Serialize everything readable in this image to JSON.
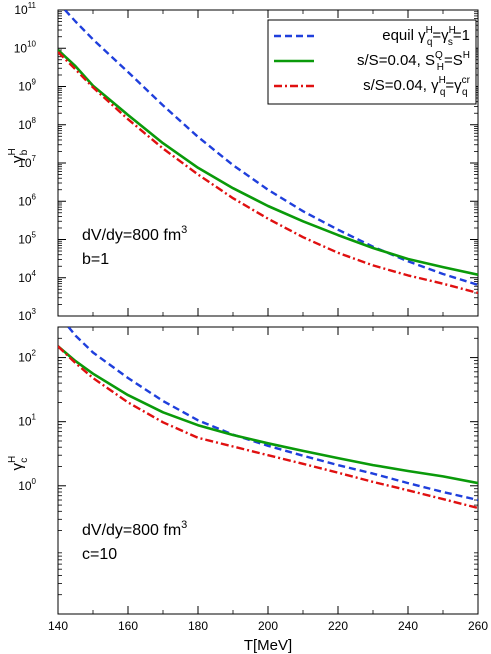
{
  "chart_data": [
    {
      "type": "line",
      "panel": "top",
      "ylabel": {
        "main": "γ",
        "sup": "H",
        "sub": "b"
      },
      "yscale": "log",
      "ylim": [
        1000,
        100000000000
      ],
      "xlim": [
        140,
        260
      ],
      "yticks": [
        {
          "base": "10",
          "exp": "3",
          "value": 1000
        },
        {
          "base": "10",
          "exp": "4",
          "value": 10000
        },
        {
          "base": "10",
          "exp": "5",
          "value": 100000
        },
        {
          "base": "10",
          "exp": "6",
          "value": 1000000
        },
        {
          "base": "10",
          "exp": "7",
          "value": 10000000
        },
        {
          "base": "10",
          "exp": "8",
          "value": 100000000
        },
        {
          "base": "10",
          "exp": "9",
          "value": 1000000000
        },
        {
          "base": "10",
          "exp": "10",
          "value": 10000000000
        },
        {
          "base": "10",
          "exp": "11",
          "value": 100000000000
        }
      ],
      "legend": [
        {
          "prefix": "equil γ",
          "sup1": "H",
          "sub1": "q",
          "mid": "=γ",
          "sup2": "H",
          "sub2": "s",
          "suffix": "=1",
          "color": "#1f3fdc",
          "style": "dashed"
        },
        {
          "prefix": "s/S=0.04, S",
          "sup1": "Q",
          "sub1": "H",
          "mid": "=S",
          "sup2": "H",
          "sub2": "",
          "suffix": "",
          "color": "#0a9a0a",
          "style": "solid"
        },
        {
          "prefix": "s/S=0.04, γ",
          "sup1": "H",
          "sub1": "q",
          "mid": "=γ",
          "sup2": "cr",
          "sub2": "q",
          "suffix": "",
          "color": "#e01010",
          "style": "dashdot"
        }
      ],
      "annotation": {
        "line1": "dV/dy=800 fm",
        "line1_sup": "3",
        "line2": "b=1"
      },
      "series": [
        {
          "color": "#1f3fdc",
          "style": "dashed",
          "x": [
            142,
            145,
            150,
            160,
            170,
            180,
            190,
            200,
            210,
            220,
            230,
            240,
            250,
            260
          ],
          "y": [
            100000000000,
            50000000000,
            17000000000,
            2400000000,
            320000000,
            48000000,
            8800000,
            2000000,
            550000,
            180000,
            65000,
            27000,
            12500,
            6500
          ]
        },
        {
          "color": "#0a9a0a",
          "style": "solid",
          "x": [
            140,
            145,
            150,
            160,
            170,
            180,
            190,
            200,
            210,
            220,
            230,
            240,
            250,
            260
          ],
          "y": [
            9000000000,
            3400000000,
            1050000000,
            180000000,
            33000000,
            7500000,
            2200000,
            750000,
            300000,
            130000,
            60000,
            31000,
            19000,
            12000
          ]
        },
        {
          "color": "#e01010",
          "style": "dashdot",
          "x": [
            140,
            145,
            150,
            160,
            170,
            180,
            190,
            200,
            210,
            220,
            230,
            240,
            250,
            260
          ],
          "y": [
            8000000000,
            2800000000,
            950000000,
            140000000,
            24000000,
            5000000,
            1200000,
            350000,
            115000,
            45000,
            21000,
            11500,
            7000,
            4000
          ]
        }
      ]
    },
    {
      "type": "line",
      "panel": "bottom",
      "ylabel": {
        "main": "γ",
        "sup": "H",
        "sub": "c"
      },
      "xlabel": "T[MeV]",
      "yscale": "log",
      "ylim": [
        0.01,
        300
      ],
      "xlim": [
        140,
        260
      ],
      "yticks": [
        {
          "base": "10",
          "exp": "0",
          "value": 1
        },
        {
          "base": "10",
          "exp": "1",
          "value": 10
        },
        {
          "base": "10",
          "exp": "2",
          "value": 100
        }
      ],
      "xticks": [
        "140",
        "160",
        "180",
        "200",
        "220",
        "240",
        "260"
      ],
      "annotation": {
        "line1": "dV/dy=800 fm",
        "line1_sup": "3",
        "line2": "c=10"
      },
      "series": [
        {
          "color": "#1f3fdc",
          "style": "dashed",
          "x": [
            143,
            145,
            150,
            160,
            170,
            180,
            190,
            200,
            210,
            220,
            230,
            240,
            250,
            260
          ],
          "y": [
            300,
            220,
            120,
            48,
            21,
            10.5,
            6.3,
            4.2,
            2.95,
            2.1,
            1.55,
            1.1,
            0.8,
            0.6
          ]
        },
        {
          "color": "#0a9a0a",
          "style": "solid",
          "x": [
            140,
            145,
            150,
            160,
            170,
            180,
            190,
            200,
            210,
            220,
            230,
            240,
            250,
            260
          ],
          "y": [
            150,
            88,
            56,
            26,
            14,
            8.8,
            6.2,
            4.6,
            3.5,
            2.7,
            2.1,
            1.7,
            1.4,
            1.1
          ]
        },
        {
          "color": "#e01010",
          "style": "dashdot",
          "x": [
            140,
            145,
            150,
            160,
            170,
            180,
            190,
            200,
            210,
            220,
            230,
            240,
            250,
            260
          ],
          "y": [
            150,
            82,
            48,
            20,
            9.8,
            5.6,
            4.1,
            3.0,
            2.2,
            1.6,
            1.15,
            0.85,
            0.62,
            0.45
          ]
        }
      ]
    }
  ]
}
